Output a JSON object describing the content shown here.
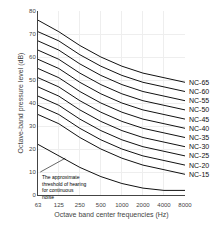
{
  "chart_data": {
    "type": "line",
    "xlabel": "Octave band center frequencies (Hz)",
    "ylabel": "Octave-band pressure level (dB)",
    "x": [
      63,
      125,
      250,
      500,
      1000,
      2000,
      4000,
      8000
    ],
    "series": [
      {
        "name": "NC-65",
        "color": "#111111",
        "values": [
          76,
          71,
          65,
          60,
          56,
          53,
          51,
          49
        ]
      },
      {
        "name": "NC-60",
        "color": "#111111",
        "values": [
          71,
          67,
          61,
          56,
          52,
          49,
          47,
          45
        ]
      },
      {
        "name": "NC-55",
        "color": "#111111",
        "values": [
          67,
          63,
          57,
          52,
          48,
          45,
          43,
          41
        ]
      },
      {
        "name": "NC-50",
        "color": "#111111",
        "values": [
          63,
          59,
          53,
          48,
          44,
          41,
          39,
          37
        ]
      },
      {
        "name": "NC-45",
        "color": "#111111",
        "values": [
          59,
          55,
          49,
          44,
          40,
          37,
          35,
          33
        ]
      },
      {
        "name": "NC-40",
        "color": "#111111",
        "values": [
          55,
          51,
          45,
          40,
          36,
          33,
          31,
          29
        ]
      },
      {
        "name": "NC-35",
        "color": "#111111",
        "values": [
          51,
          47,
          41,
          36,
          32,
          29,
          27,
          25
        ]
      },
      {
        "name": "NC-30",
        "color": "#111111",
        "values": [
          47,
          43,
          37,
          32,
          28,
          25,
          23,
          21
        ]
      },
      {
        "name": "NC-25",
        "color": "#111111",
        "values": [
          43,
          39,
          33,
          28,
          24,
          21,
          19,
          17
        ]
      },
      {
        "name": "NC-20",
        "color": "#111111",
        "values": [
          39,
          35,
          29,
          24,
          20,
          17,
          15,
          13
        ]
      },
      {
        "name": "NC-15",
        "color": "#111111",
        "values": [
          35,
          31,
          25,
          20,
          16,
          13,
          11,
          9
        ]
      },
      {
        "color": "#111111",
        "values": [
          22,
          17,
          12,
          8,
          5,
          3,
          2,
          2
        ]
      }
    ],
    "log": "x",
    "xlim": [
      63,
      8000
    ],
    "xticks": [
      63,
      125,
      250,
      500,
      1000,
      2000,
      4000,
      8000
    ],
    "ylim": [
      0,
      80
    ],
    "yticks": [
      0,
      10,
      20,
      30,
      40,
      50,
      60,
      70,
      80
    ],
    "grid": true,
    "annotations": [
      {
        "text": "The approximate\nthreshold of hearing\nfor continuous\nnoise",
        "x": 155,
        "y": 16,
        "text_x": 68,
        "text_y": 10
      }
    ]
  }
}
